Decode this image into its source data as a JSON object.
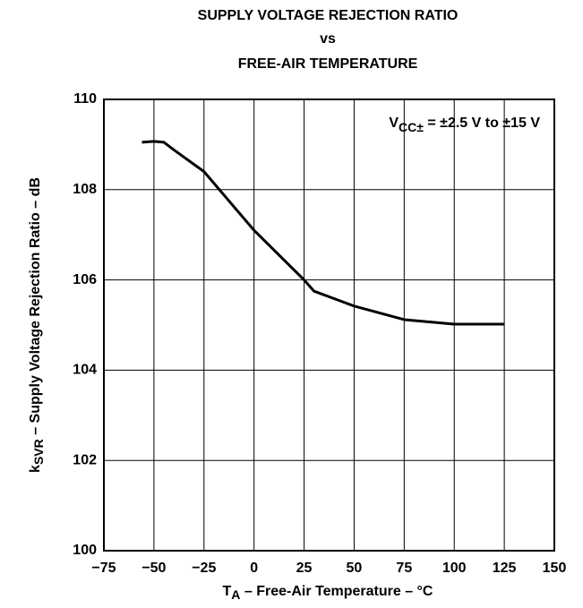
{
  "chart_data": {
    "type": "line",
    "title": [
      "SUPPLY VOLTAGE REJECTION RATIO",
      "vs",
      "FREE-AIR TEMPERATURE"
    ],
    "x_label": [
      "T",
      "A",
      " – Free-Air Temperature – °C"
    ],
    "y_label": [
      "k",
      "SVR",
      " – Supply Voltage Rejection Ratio – dB"
    ],
    "annotation": [
      "V",
      "CC±",
      " = ±2.5 V to ±15 V"
    ],
    "xlim": [
      -75,
      150
    ],
    "xticks": [
      {
        "value": -75,
        "label": "−75"
      },
      {
        "value": -50,
        "label": "−50"
      },
      {
        "value": -25,
        "label": "−25"
      },
      0,
      25,
      50,
      75,
      100,
      125,
      150
    ],
    "ylim": [
      100,
      110
    ],
    "yticks": [
      100,
      102,
      104,
      106,
      108,
      110
    ],
    "grid": true,
    "series": [
      {
        "color": "#000000",
        "x": [
          -56,
          -50,
          -45,
          -40,
          -25,
          0,
          25,
          30,
          50,
          75,
          100,
          125
        ],
        "values": [
          109.05,
          109.07,
          109.05,
          108.88,
          108.4,
          107.1,
          106.0,
          105.75,
          105.42,
          105.12,
          105.02,
          105.02
        ]
      }
    ]
  }
}
